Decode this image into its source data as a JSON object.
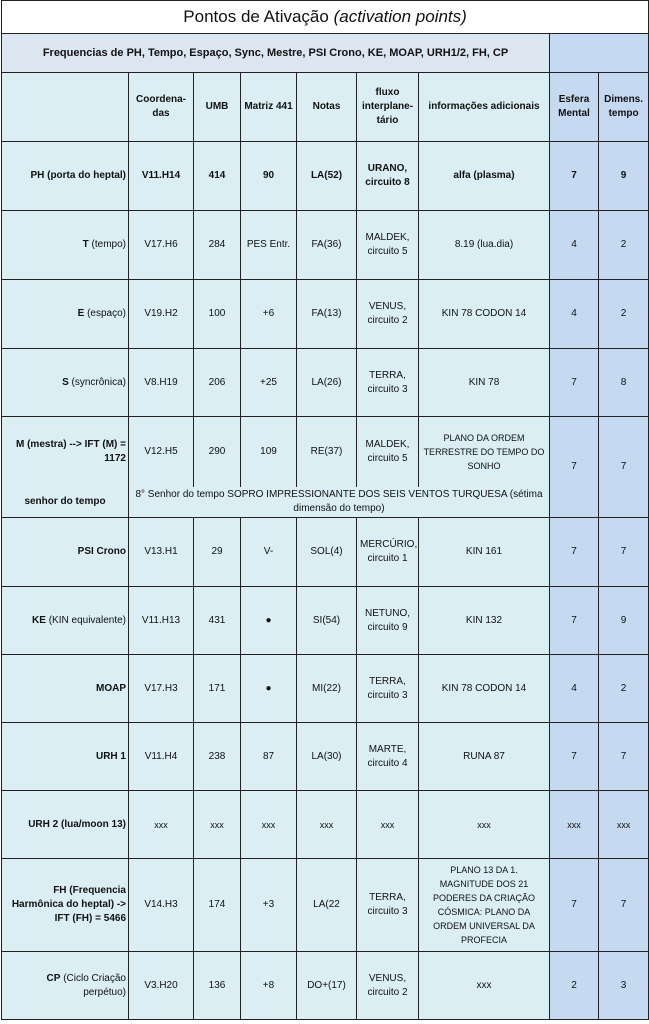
{
  "title": {
    "main": "Pontos de Ativação ",
    "italic": "(activation points)"
  },
  "subtitle": "Frequencias de PH, Tempo, Espaço, Sync, Mestre, PSI Crono, KE, MOAP, URH1/2, FH, CP",
  "headers": [
    "",
    "Coordena-das",
    "UMB",
    "Matriz 441",
    "Notas",
    "fluxo interplane-tário",
    "informações adicionais",
    "Esfera Mental",
    "Dimens. tempo"
  ],
  "rows": [
    {
      "bold": "PH (porta do heptal)",
      "rest": "",
      "coord": "V11.H14",
      "umb": "414",
      "matriz": "90",
      "notas": "LA(52)",
      "fluxo": "URANO, circuito 8",
      "info": "alfa (plasma)",
      "esfera": "7",
      "dim": "9"
    },
    {
      "bold": "T",
      "rest": " (tempo)",
      "coord": "V17.H6",
      "umb": "284",
      "matriz": "PES Entr.",
      "notas": "FA(36)",
      "fluxo": "MALDEK, circuito 5",
      "info": "8.19 (lua.dia)",
      "esfera": "4",
      "dim": "2"
    },
    {
      "bold": "E",
      "rest": " (espaço)",
      "coord": "V19.H2",
      "umb": "100",
      "matriz": "+6",
      "notas": "FA(13)",
      "fluxo": "VENUS, circuito 2",
      "info": "KIN 78      CODON 14",
      "esfera": "4",
      "dim": "2"
    },
    {
      "bold": "S",
      "rest": " (syncrônica)",
      "coord": "V8.H19",
      "umb": "206",
      "matriz": "+25",
      "notas": "LA(26)",
      "fluxo": "TERRA, circuito 3",
      "info": "KIN 78",
      "esfera": "7",
      "dim": "8"
    },
    {
      "bold": "M (mestra) --> IFT (M) = 1172",
      "rest": "",
      "coord": "V12.H5",
      "umb": "290",
      "matriz": "109",
      "notas": "RE(37)",
      "fluxo": "MALDEK, circuito 5",
      "info": "PLANO DA ORDEM TERRESTRE DO TEMPO DO SONHO",
      "esfera": "7",
      "dim": "7"
    },
    {
      "bold": "PSI Crono",
      "rest": "",
      "coord": "V13.H1",
      "umb": "29",
      "matriz": "V-",
      "notas": "SOL(4)",
      "fluxo": "MERCÚRIO, circuito 1",
      "info": "KIN 161",
      "esfera": "7",
      "dim": "7"
    },
    {
      "bold": "KE",
      "rest": " (KIN equivalente)",
      "coord": "V11.H13",
      "umb": "431",
      "matriz": "●",
      "notas": "SI(54)",
      "fluxo": "NETUNO, circuito 9",
      "info": "KIN 132",
      "esfera": "7",
      "dim": "9"
    },
    {
      "bold": "MOAP",
      "rest": "",
      "coord": "V17.H3",
      "umb": "171",
      "matriz": "●",
      "notas": "MI(22)",
      "fluxo": "TERRA, circuito 3",
      "info": "KIN 78      CODON 14",
      "esfera": "4",
      "dim": "2"
    },
    {
      "bold": "URH 1",
      "rest": "",
      "coord": "V11.H4",
      "umb": "238",
      "matriz": "87",
      "notas": "LA(30)",
      "fluxo": "MARTE, circuito 4",
      "info": "RUNA 87",
      "esfera": "7",
      "dim": "7"
    },
    {
      "bold": "URH 2 (lua/moon 13)",
      "rest": "",
      "coord": "xxx",
      "umb": "xxx",
      "matriz": "xxx",
      "notas": "xxx",
      "fluxo": "xxx",
      "info": "xxx",
      "esfera": "xxx",
      "dim": "xxx"
    },
    {
      "bold": "FH (Frequencia Harmônica do heptal) -> IFT (FH) = 5466",
      "rest": "",
      "coord": "V14.H3",
      "umb": "174",
      "matriz": "+3",
      "notas": "LA(22",
      "fluxo": "TERRA, circuito 3",
      "info": "PLANO 13 DA 1. MAGNITUDE DOS 21 PODERES DA CRIAÇÃO CÓSMICA: PLANO DA ORDEM UNIVERSAL DA PROFECIA",
      "esfera": "7",
      "dim": "7"
    },
    {
      "bold": "CP",
      "rest": " (Ciclo Criação perpétuo)",
      "coord": "V3.H20",
      "umb": "136",
      "matriz": "+8",
      "notas": "DO+(17)",
      "fluxo": "VENUS, circuito 2",
      "info": "xxx",
      "esfera": "2",
      "dim": "3"
    }
  ],
  "senhor": {
    "label": "senhor do tempo",
    "text": "8° Senhor do tempo SOPRO IMPRESSIONANTE DOS SEIS VENTOS TURQUESA (sétima dimensão do tempo)"
  },
  "colors": {
    "cell": "#daeef3",
    "subheader": "#dce6f1",
    "right_columns": "#c5d9f1"
  }
}
